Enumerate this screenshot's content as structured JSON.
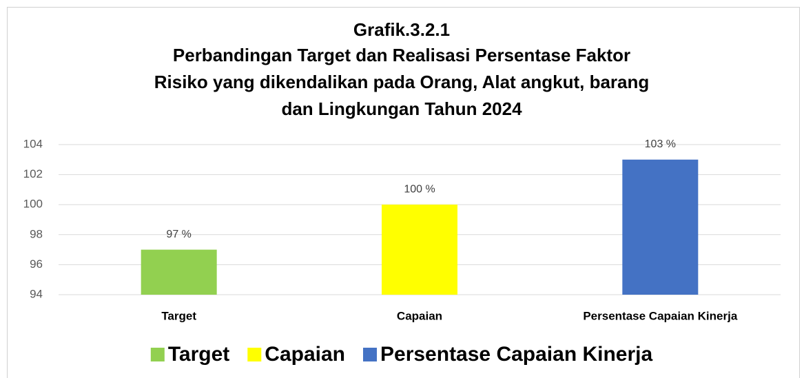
{
  "chart_data": {
    "type": "bar",
    "title": [
      "Grafik.3.2.1",
      "Perbandingan Target dan Realisasi Persentase Faktor",
      "Risiko yang dikendalikan pada Orang, Alat angkut, barang",
      "dan Lingkungan Tahun 2024"
    ],
    "categories": [
      "Target",
      "Capaian",
      "Persentase Capaian Kinerja"
    ],
    "values": [
      97,
      100,
      103
    ],
    "value_labels": [
      "97 %",
      "100 %",
      "103 %"
    ],
    "colors": [
      "#92d050",
      "#ffff00",
      "#4472c4"
    ],
    "ylim": [
      94,
      104
    ],
    "yticks": [
      94,
      96,
      98,
      100,
      102,
      104
    ],
    "grid": true,
    "legend": "bottom"
  }
}
